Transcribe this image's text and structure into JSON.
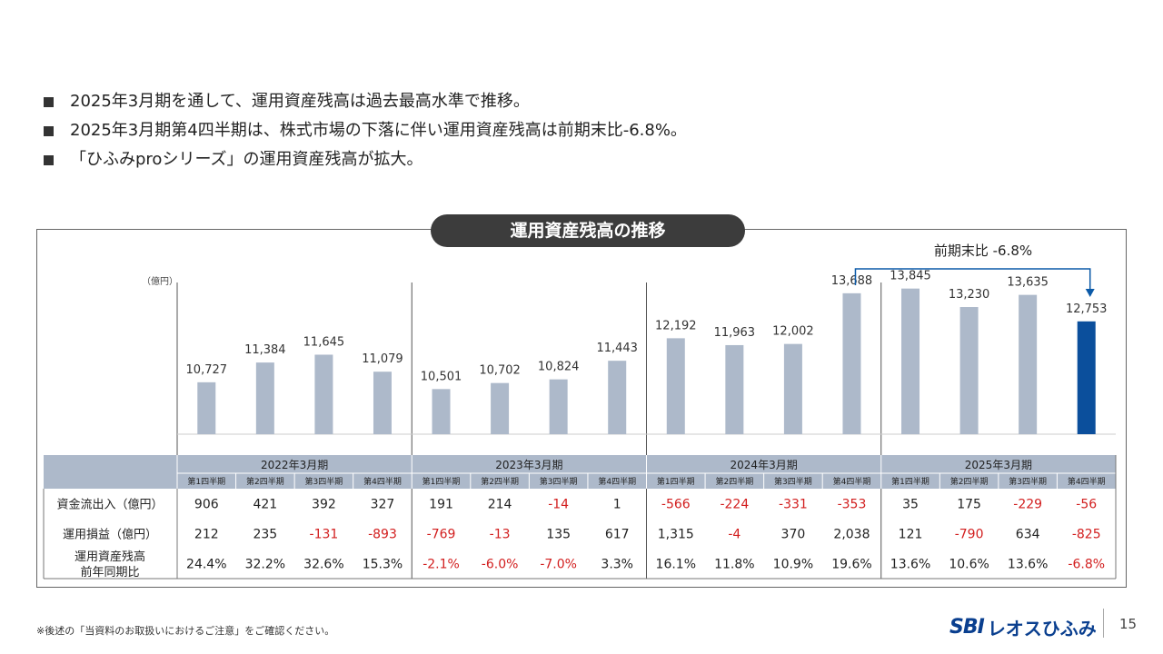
{
  "bullets": [
    "2025年3月期を通して、運用資産残高は過去最高水準で推移。",
    "2025年3月期第4四半期は、株式市場の下落に伴い運用資産残高は前期末比-6.8%。",
    "「ひふみproシリーズ」の運用資産残高が拡大。"
  ],
  "colors": {
    "bar": "#adb9ca",
    "highlight": "#0b4f9c",
    "negative": "#d21e1e",
    "header": "#adb9ca",
    "arrow": "#0b5aa8"
  },
  "chart_data": {
    "type": "bar",
    "title": "運用資産残高の推移",
    "unit": "（億円）",
    "annotation": "前期末比  -6.8%",
    "highlight_index": 15,
    "ylim": [
      9000,
      14500
    ],
    "years": [
      "2022年3月期",
      "2023年3月期",
      "2024年3月期",
      "2025年3月期"
    ],
    "quarters": [
      "第1四半期",
      "第2四半期",
      "第3四半期",
      "第4四半期"
    ],
    "values": [
      10727,
      11384,
      11645,
      11079,
      10501,
      10702,
      10824,
      11443,
      12192,
      11963,
      12002,
      13688,
      13845,
      13230,
      13635,
      12753
    ],
    "labels": [
      "10,727",
      "11,384",
      "11,645",
      "11,079",
      "10,501",
      "10,702",
      "10,824",
      "11,443",
      "12,192",
      "11,963",
      "12,002",
      "13,688",
      "13,845",
      "13,230",
      "13,635",
      "12,753"
    ],
    "table": [
      {
        "label": [
          "資金流出入（億円）"
        ],
        "values": [
          "906",
          "421",
          "392",
          "327",
          "191",
          "214",
          "-14",
          "1",
          "-566",
          "-224",
          "-331",
          "-353",
          "35",
          "175",
          "-229",
          "-56"
        ]
      },
      {
        "label": [
          "運用損益（億円）"
        ],
        "values": [
          "212",
          "235",
          "-131",
          "-893",
          "-769",
          "-13",
          "135",
          "617",
          "1,315",
          "-4",
          "370",
          "2,038",
          "121",
          "-790",
          "634",
          "-825"
        ]
      },
      {
        "label": [
          "運用資産残高",
          "前年同期比"
        ],
        "values": [
          "24.4%",
          "32.2%",
          "32.6%",
          "15.3%",
          "-2.1%",
          "-6.0%",
          "-7.0%",
          "3.3%",
          "16.1%",
          "11.8%",
          "10.9%",
          "19.6%",
          "13.6%",
          "10.6%",
          "13.6%",
          "-6.8%"
        ]
      }
    ]
  },
  "footer": {
    "note": "※後述の「当資料のお取扱いにおけるご注意」をご確認ください。",
    "logo_sbi": "SBI",
    "logo_name": "レオスひふみ",
    "page": "15"
  }
}
